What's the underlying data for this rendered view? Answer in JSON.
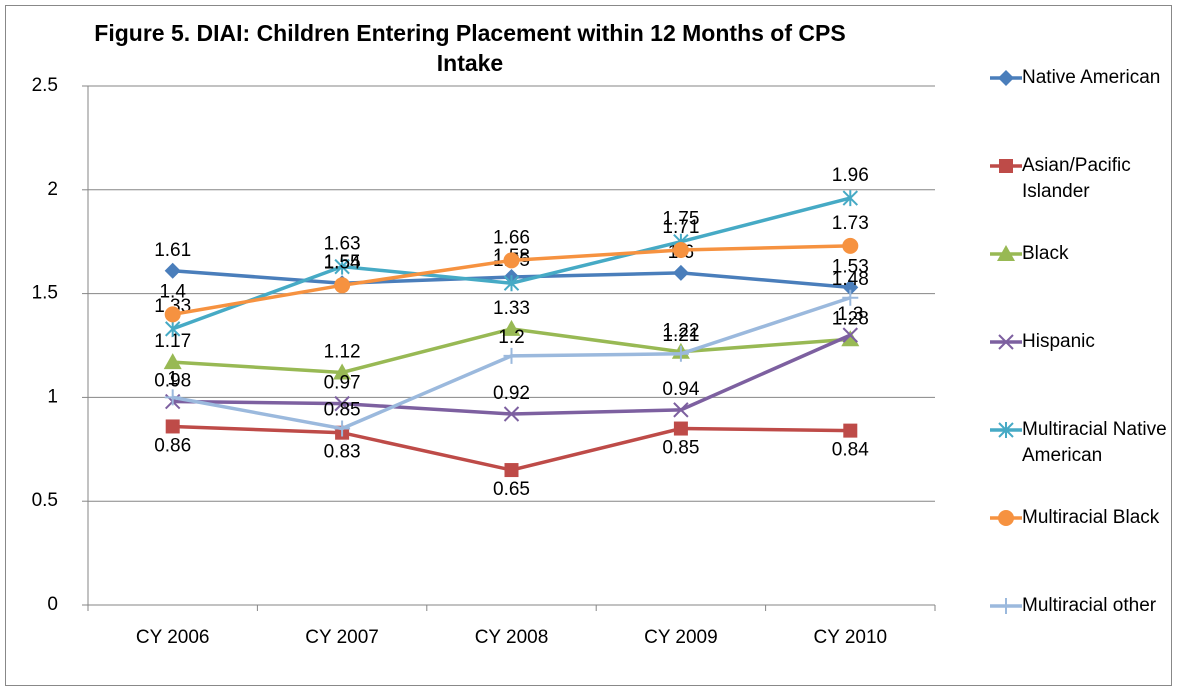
{
  "chart_data": {
    "type": "line",
    "title": "Figure 5. DIAI: Children Entering Placement  within 12 Months of CPS Intake",
    "categories": [
      "CY 2006",
      "CY 2007",
      "CY 2008",
      "CY 2009",
      "CY 2010"
    ],
    "ylim": [
      0,
      2.5
    ],
    "yticks": [
      0,
      0.5,
      1,
      1.5,
      2,
      2.5
    ],
    "grid": true,
    "legend": "right",
    "series": [
      {
        "name": "Native American",
        "color": "#4a7ebb",
        "marker": "diamond",
        "values": [
          1.61,
          1.55,
          1.58,
          1.6,
          1.53
        ]
      },
      {
        "name": "Asian/Pacific Islander",
        "color": "#be4b48",
        "marker": "square",
        "values": [
          0.86,
          0.83,
          0.65,
          0.85,
          0.84
        ]
      },
      {
        "name": "Black",
        "color": "#98b954",
        "marker": "triangle",
        "values": [
          1.17,
          1.12,
          1.33,
          1.22,
          1.28
        ]
      },
      {
        "name": "Hispanic",
        "color": "#7d60a0",
        "marker": "x",
        "values": [
          0.98,
          0.97,
          0.92,
          0.94,
          1.3
        ]
      },
      {
        "name": "Multiracial Native American",
        "color": "#46aac5",
        "marker": "star",
        "values": [
          1.33,
          1.63,
          1.55,
          1.75,
          1.96
        ]
      },
      {
        "name": "Multiracial Black",
        "color": "#f69240",
        "marker": "circle",
        "values": [
          1.4,
          1.54,
          1.66,
          1.71,
          1.73
        ]
      },
      {
        "name": "Multiracial other",
        "color": "#9bb9dd",
        "marker": "plus",
        "values": [
          1,
          0.85,
          1.2,
          1.21,
          1.48
        ]
      }
    ]
  }
}
